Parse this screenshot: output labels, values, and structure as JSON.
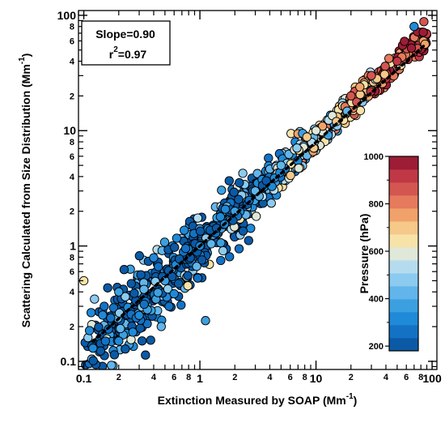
{
  "chart_data": {
    "type": "scatter",
    "xlabel": "Extinction Measured by SOAP (Mm",
    "xlabel_sup": "-1",
    "xlabel_end": ")",
    "ylabel": "Scattering Calculated from Size Distribution (Mm",
    "ylabel_sup": "-1",
    "ylabel_end": ")",
    "x_scale": "log",
    "y_scale": "log",
    "xlim": [
      0.09,
      110
    ],
    "ylim": [
      0.085,
      110
    ],
    "x_major_ticks": [
      {
        "value": 0.1,
        "label": "0.1"
      },
      {
        "value": 1,
        "label": "1"
      },
      {
        "value": 10,
        "label": "10"
      },
      {
        "value": 100,
        "label": "100"
      }
    ],
    "x_minor_ticks": [
      {
        "value": 0.2,
        "label": "2"
      },
      {
        "value": 0.4,
        "label": "4"
      },
      {
        "value": 0.6,
        "label": "6"
      },
      {
        "value": 0.8,
        "label": "8"
      },
      {
        "value": 2,
        "label": "2"
      },
      {
        "value": 4,
        "label": "4"
      },
      {
        "value": 6,
        "label": "6"
      },
      {
        "value": 8,
        "label": "8"
      },
      {
        "value": 20,
        "label": "2"
      },
      {
        "value": 40,
        "label": "4"
      },
      {
        "value": 60,
        "label": "6"
      },
      {
        "value": 80,
        "label": "8"
      }
    ],
    "y_major_ticks": [
      {
        "value": 0.1,
        "label": "0.1"
      },
      {
        "value": 1,
        "label": "1"
      },
      {
        "value": 10,
        "label": "10"
      },
      {
        "value": 100,
        "label": "100"
      }
    ],
    "y_minor_ticks": [
      {
        "value": 0.2,
        "label": "2"
      },
      {
        "value": 0.4,
        "label": "4"
      },
      {
        "value": 0.6,
        "label": "6"
      },
      {
        "value": 0.8,
        "label": "8"
      },
      {
        "value": 2,
        "label": "2"
      },
      {
        "value": 4,
        "label": "4"
      },
      {
        "value": 6,
        "label": "6"
      },
      {
        "value": 8,
        "label": "8"
      },
      {
        "value": 20,
        "label": "2"
      },
      {
        "value": 40,
        "label": "4"
      },
      {
        "value": 60,
        "label": "6"
      },
      {
        "value": 80,
        "label": "8"
      }
    ],
    "annotation": {
      "slope_text": "Slope=0.90",
      "r2_prefix": "r",
      "r2_sup": "2",
      "r2_value": "=0.97"
    },
    "fit_line": {
      "slope": 0.9,
      "style": "dotted",
      "color": "#000000",
      "x_range": [
        0.12,
        85
      ]
    },
    "colorbar": {
      "label": "Pressure (hPa)",
      "range": [
        180,
        1000
      ],
      "ticks": [
        200,
        400,
        600,
        800,
        1000
      ],
      "colors": [
        "#0b5aa6",
        "#1372c4",
        "#1f8ad8",
        "#3ca0e0",
        "#62b5ea",
        "#8ccbf0",
        "#b5dcee",
        "#dfe8d9",
        "#f7e3a8",
        "#f6c889",
        "#f1a26a",
        "#e67a5c",
        "#d45650",
        "#c03845",
        "#9c1d35"
      ]
    },
    "marker": {
      "shape": "circle",
      "edge_color": "#000000"
    },
    "points_sample": [
      {
        "x": 85,
        "y": 88,
        "pressure": 880
      },
      {
        "x": 70,
        "y": 80,
        "pressure": 300
      },
      {
        "x": 50,
        "y": 40,
        "pressure": 900
      },
      {
        "x": 30,
        "y": 30,
        "pressure": 880
      },
      {
        "x": 20,
        "y": 20,
        "pressure": 850
      },
      {
        "x": 15,
        "y": 12,
        "pressure": 700
      },
      {
        "x": 10,
        "y": 10,
        "pressure": 600
      },
      {
        "x": 5,
        "y": 5,
        "pressure": 450
      },
      {
        "x": 3,
        "y": 3,
        "pressure": 400
      },
      {
        "x": 2,
        "y": 2,
        "pressure": 350
      },
      {
        "x": 1,
        "y": 1,
        "pressure": 300
      },
      {
        "x": 0.5,
        "y": 0.5,
        "pressure": 350
      },
      {
        "x": 0.3,
        "y": 0.25,
        "pressure": 300
      },
      {
        "x": 0.2,
        "y": 0.15,
        "pressure": 300
      },
      {
        "x": 0.12,
        "y": 0.13,
        "pressure": 300
      },
      {
        "x": 0.1,
        "y": 0.5,
        "pressure": 650
      },
      {
        "x": 0.2,
        "y": 0.4,
        "pressure": 350
      },
      {
        "x": 0.15,
        "y": 0.3,
        "pressure": 250
      }
    ]
  }
}
